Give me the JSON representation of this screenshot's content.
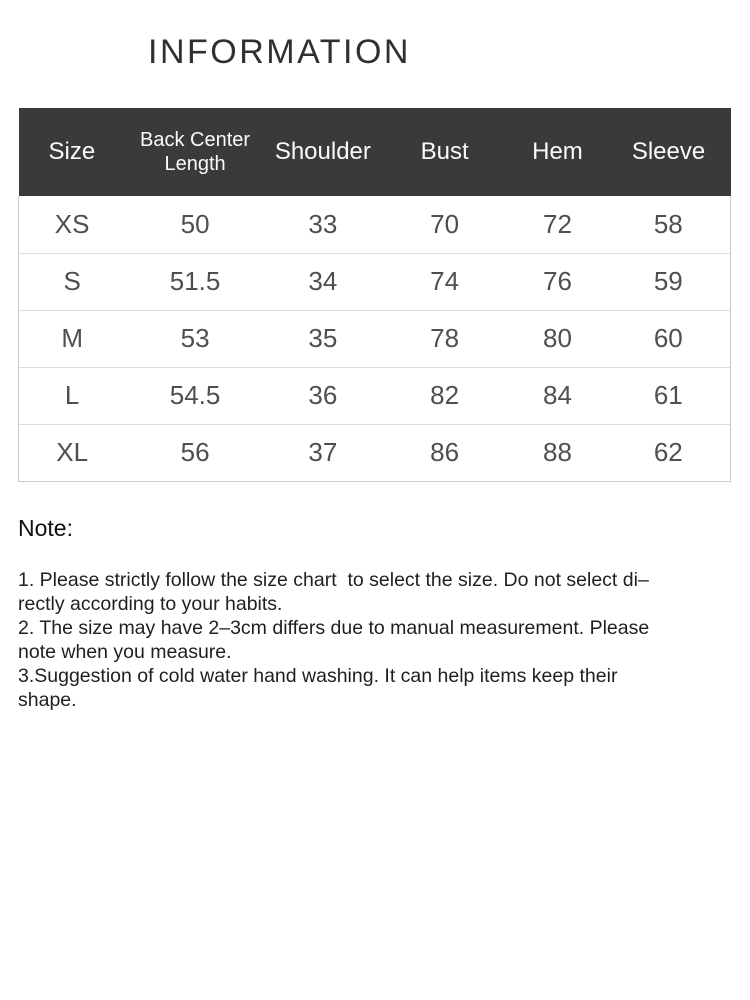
{
  "title": "INFORMATION",
  "size_chart": {
    "columns": [
      "Size",
      "Back Center Length",
      "Shoulder",
      "Bust",
      "Hem",
      "Sleeve"
    ],
    "rows": [
      [
        "XS",
        "50",
        "33",
        "70",
        "72",
        "58"
      ],
      [
        "S",
        "51.5",
        "34",
        "74",
        "76",
        "59"
      ],
      [
        "M",
        "53",
        "35",
        "78",
        "80",
        "60"
      ],
      [
        "L",
        "54.5",
        "36",
        "82",
        "84",
        "61"
      ],
      [
        "XL",
        "56",
        "37",
        "86",
        "88",
        "62"
      ]
    ]
  },
  "note": {
    "heading": "Note:",
    "lines": [
      "1. Please strictly follow the size chart  to select the size. Do not select di–",
      "rectly according to your habits.",
      "2. The size may have 2–3cm differs due to manual measurement. Please",
      "note when you measure.",
      "3.Suggestion of cold water hand washing. It can help items keep their",
      "shape."
    ]
  },
  "colors": {
    "table_header_background": "#3a3a3a",
    "table_header_text": "#fafafa",
    "table_body_text": "#4f4f4f",
    "row_divider": "#dddddd",
    "table_outer_border": "#cccccc",
    "title_text": "#303030",
    "note_text": "#1f1f1f",
    "page_background": "#ffffff"
  }
}
